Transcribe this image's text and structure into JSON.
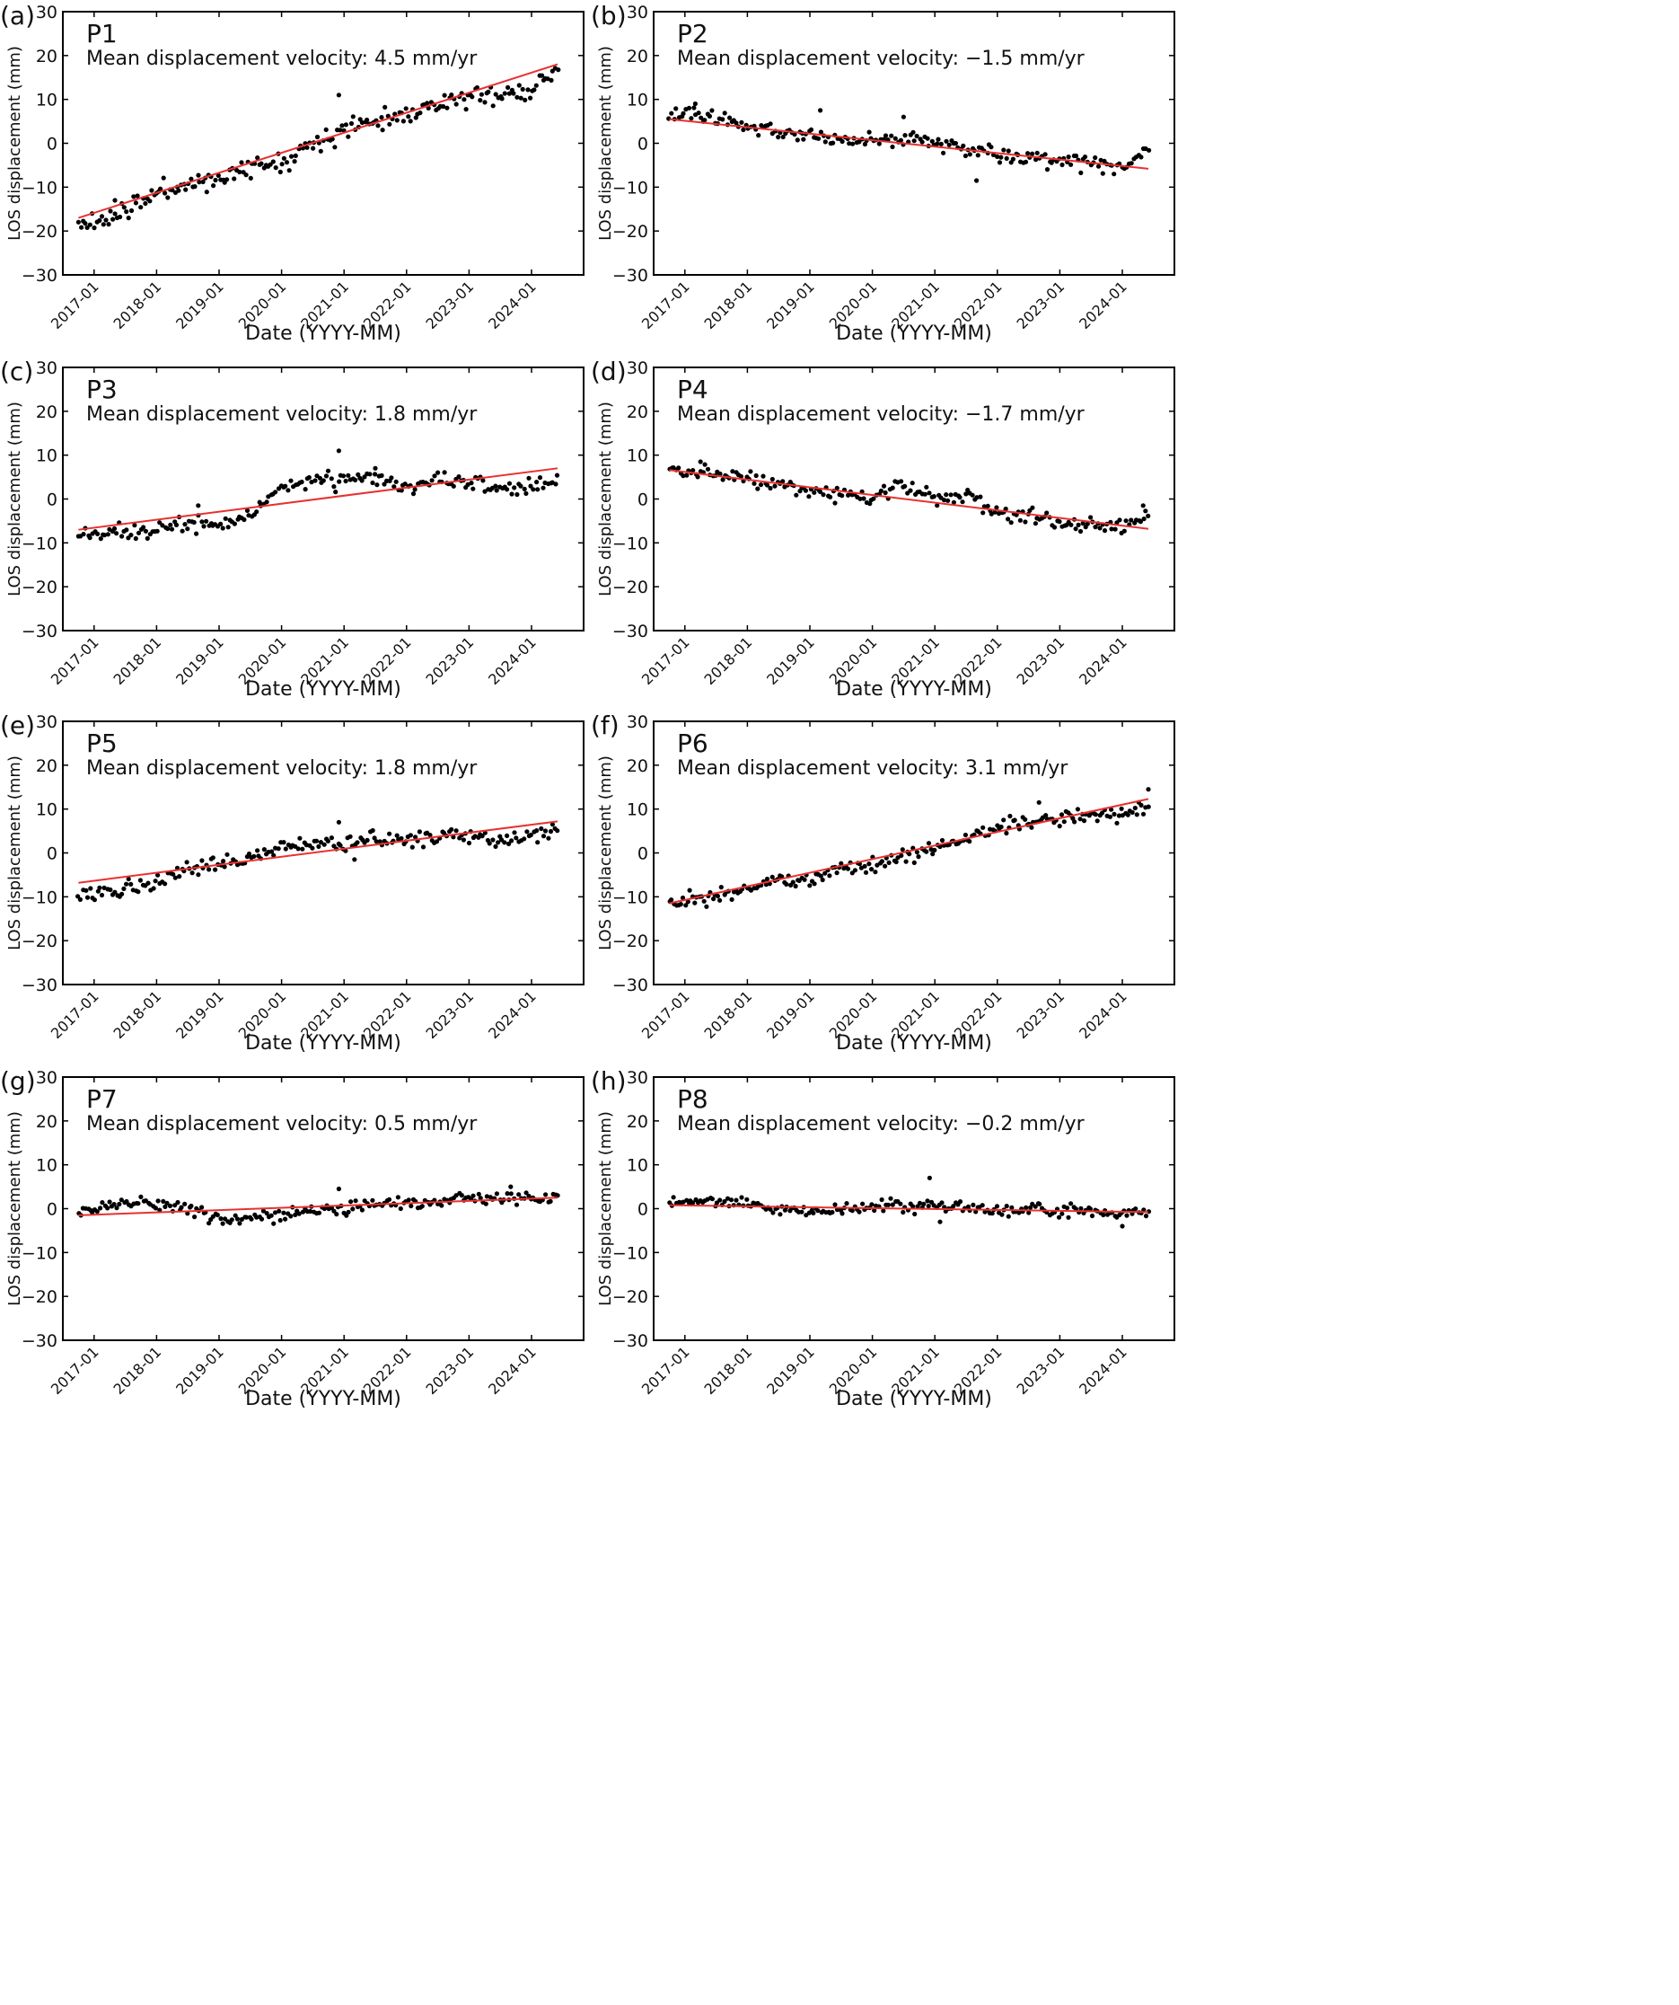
{
  "chart_data": [
    {
      "type": "scatter",
      "panel_label": "(a)",
      "point_label": "P1",
      "velocity_text": "Mean displacement velocity: 4.5 mm/yr",
      "xlabel": "Date (YYYY-MM)",
      "ylabel": "LOS displacement (mm)",
      "x_ticks": [
        "2017-01",
        "2018-01",
        "2019-01",
        "2020-01",
        "2021-01",
        "2022-01",
        "2023-01",
        "2024-01"
      ],
      "y_ticks": [
        30,
        20,
        10,
        0,
        -10,
        -20,
        -30
      ],
      "xlim": [
        "2016-07",
        "2024-11"
      ],
      "ylim": [
        -30,
        30
      ],
      "series": [
        {
          "kind": "points",
          "anchors": [
            [
              "2016-10",
              -18.5
            ],
            [
              "2017-01",
              -18
            ],
            [
              "2017-07",
              -15.5
            ],
            [
              "2018-01",
              -11
            ],
            [
              "2018-07",
              -9.5
            ],
            [
              "2019-01",
              -8
            ],
            [
              "2019-07",
              -5.5
            ],
            [
              "2020-01",
              -4
            ],
            [
              "2020-07",
              0
            ],
            [
              "2021-01",
              3
            ],
            [
              "2021-07",
              5.5
            ],
            [
              "2022-01",
              6.5
            ],
            [
              "2022-07",
              9
            ],
            [
              "2023-01",
              10.5
            ],
            [
              "2023-07",
              11
            ],
            [
              "2024-01",
              12.5
            ],
            [
              "2024-06",
              17
            ]
          ],
          "noise": 1.4,
          "count": 210,
          "seed": 11,
          "outliers": [
            [
              "2020-12",
              11
            ],
            [
              "2017-05",
              -13
            ]
          ]
        },
        {
          "kind": "trend",
          "from": [
            "2016-10",
            -17
          ],
          "to": [
            "2024-06",
            18
          ]
        }
      ]
    },
    {
      "type": "scatter",
      "panel_label": "(b)",
      "point_label": "P2",
      "velocity_text": "Mean displacement velocity: −1.5 mm/yr",
      "xlabel": "Date (YYYY-MM)",
      "ylabel": "LOS displacement (mm)",
      "x_ticks": [
        "2017-01",
        "2018-01",
        "2019-01",
        "2020-01",
        "2021-01",
        "2022-01",
        "2023-01",
        "2024-01"
      ],
      "y_ticks": [
        30,
        20,
        10,
        0,
        -10,
        -20,
        -30
      ],
      "xlim": [
        "2016-07",
        "2024-11"
      ],
      "ylim": [
        -30,
        30
      ],
      "series": [
        {
          "kind": "points",
          "anchors": [
            [
              "2016-10",
              6.5
            ],
            [
              "2017-04",
              6.5
            ],
            [
              "2018-01",
              4
            ],
            [
              "2018-07",
              3
            ],
            [
              "2019-01",
              2
            ],
            [
              "2019-07",
              1
            ],
            [
              "2020-01",
              0.5
            ],
            [
              "2020-07",
              1
            ],
            [
              "2021-01",
              0.5
            ],
            [
              "2021-07",
              -1
            ],
            [
              "2022-01",
              -2.5
            ],
            [
              "2022-07",
              -3.5
            ],
            [
              "2023-01",
              -4
            ],
            [
              "2023-07",
              -5
            ],
            [
              "2024-01",
              -5.5
            ],
            [
              "2024-06",
              -1
            ]
          ],
          "noise": 1.1,
          "count": 200,
          "seed": 23,
          "outliers": [
            [
              "2019-03",
              7.5
            ],
            [
              "2020-07",
              6
            ],
            [
              "2021-09",
              -8.5
            ],
            [
              "2017-03",
              9
            ]
          ]
        },
        {
          "kind": "trend",
          "from": [
            "2016-10",
            5.5
          ],
          "to": [
            "2024-06",
            -5.8
          ]
        }
      ]
    },
    {
      "type": "scatter",
      "panel_label": "(c)",
      "point_label": "P3",
      "velocity_text": "Mean displacement velocity: 1.8 mm/yr",
      "xlabel": "Date (YYYY-MM)",
      "ylabel": "LOS displacement (mm)",
      "x_ticks": [
        "2017-01",
        "2018-01",
        "2019-01",
        "2020-01",
        "2021-01",
        "2022-01",
        "2023-01",
        "2024-01"
      ],
      "y_ticks": [
        30,
        20,
        10,
        0,
        -10,
        -20,
        -30
      ],
      "xlim": [
        "2016-07",
        "2024-11"
      ],
      "ylim": [
        -30,
        30
      ],
      "series": [
        {
          "kind": "points",
          "anchors": [
            [
              "2016-10",
              -9
            ],
            [
              "2017-04",
              -7.5
            ],
            [
              "2018-01",
              -7
            ],
            [
              "2018-07",
              -6
            ],
            [
              "2019-01",
              -5.5
            ],
            [
              "2019-07",
              -3.5
            ],
            [
              "2020-01",
              2
            ],
            [
              "2020-07",
              4.5
            ],
            [
              "2021-01",
              4
            ],
            [
              "2021-07",
              4.5
            ],
            [
              "2022-01",
              2.5
            ],
            [
              "2022-07",
              4
            ],
            [
              "2023-01",
              4
            ],
            [
              "2023-07",
              2
            ],
            [
              "2024-01",
              3
            ],
            [
              "2024-06",
              4
            ]
          ],
          "noise": 1.2,
          "count": 200,
          "seed": 37,
          "outliers": [
            [
              "2020-12",
              11
            ],
            [
              "2018-09",
              -1.5
            ],
            [
              "2021-07",
              7
            ]
          ]
        },
        {
          "kind": "trend",
          "from": [
            "2016-10",
            -7
          ],
          "to": [
            "2024-06",
            7
          ]
        }
      ]
    },
    {
      "type": "scatter",
      "panel_label": "(d)",
      "point_label": "P4",
      "velocity_text": "Mean displacement velocity: −1.7 mm/yr",
      "xlabel": "Date (YYYY-MM)",
      "ylabel": "LOS displacement (mm)",
      "x_ticks": [
        "2017-01",
        "2018-01",
        "2019-01",
        "2020-01",
        "2021-01",
        "2022-01",
        "2023-01",
        "2024-01"
      ],
      "y_ticks": [
        30,
        20,
        10,
        0,
        -10,
        -20,
        -30
      ],
      "xlim": [
        "2016-07",
        "2024-11"
      ],
      "ylim": [
        -30,
        30
      ],
      "series": [
        {
          "kind": "points",
          "anchors": [
            [
              "2016-10",
              6.5
            ],
            [
              "2017-04",
              6.5
            ],
            [
              "2018-01",
              4.5
            ],
            [
              "2018-07",
              3.5
            ],
            [
              "2019-01",
              1.5
            ],
            [
              "2019-07",
              1.5
            ],
            [
              "2020-01",
              0
            ],
            [
              "2020-07",
              3
            ],
            [
              "2021-01",
              0
            ],
            [
              "2021-07",
              1
            ],
            [
              "2022-01",
              -3
            ],
            [
              "2022-07",
              -4
            ],
            [
              "2023-01",
              -5.5
            ],
            [
              "2023-07",
              -6.5
            ],
            [
              "2024-01",
              -6.5
            ],
            [
              "2024-06",
              -4
            ]
          ],
          "noise": 1.1,
          "count": 200,
          "seed": 41,
          "outliers": [
            [
              "2017-04",
              8.5
            ],
            [
              "2024-05",
              -1.5
            ]
          ]
        },
        {
          "kind": "trend",
          "from": [
            "2016-10",
            6.6
          ],
          "to": [
            "2024-06",
            -6.8
          ]
        }
      ]
    },
    {
      "type": "scatter",
      "panel_label": "(e)",
      "point_label": "P5",
      "velocity_text": "Mean displacement velocity: 1.8 mm/yr",
      "xlabel": "Date (YYYY-MM)",
      "ylabel": "LOS displacement (mm)",
      "x_ticks": [
        "2017-01",
        "2018-01",
        "2019-01",
        "2020-01",
        "2021-01",
        "2022-01",
        "2023-01",
        "2024-01"
      ],
      "y_ticks": [
        30,
        20,
        10,
        0,
        -10,
        -20,
        -30
      ],
      "xlim": [
        "2016-07",
        "2024-11"
      ],
      "ylim": [
        -30,
        30
      ],
      "series": [
        {
          "kind": "points",
          "anchors": [
            [
              "2016-10",
              -10.5
            ],
            [
              "2017-04",
              -9
            ],
            [
              "2018-01",
              -6.5
            ],
            [
              "2018-07",
              -3
            ],
            [
              "2019-01",
              -2
            ],
            [
              "2019-07",
              -1.5
            ],
            [
              "2020-01",
              1.5
            ],
            [
              "2020-07",
              2
            ],
            [
              "2021-01",
              2
            ],
            [
              "2021-07",
              3.5
            ],
            [
              "2022-01",
              3
            ],
            [
              "2022-07",
              3.5
            ],
            [
              "2023-01",
              4
            ],
            [
              "2023-07",
              3
            ],
            [
              "2024-01",
              4
            ],
            [
              "2024-06",
              5.5
            ]
          ],
          "noise": 1.1,
          "count": 200,
          "seed": 53,
          "outliers": [
            [
              "2020-12",
              7
            ],
            [
              "2021-03",
              -1.5
            ]
          ]
        },
        {
          "kind": "trend",
          "from": [
            "2016-10",
            -6.8
          ],
          "to": [
            "2024-06",
            7.2
          ]
        }
      ]
    },
    {
      "type": "scatter",
      "panel_label": "(f)",
      "point_label": "P6",
      "velocity_text": "Mean displacement velocity: 3.1 mm/yr",
      "xlabel": "Date (YYYY-MM)",
      "ylabel": "LOS displacement (mm)",
      "x_ticks": [
        "2017-01",
        "2018-01",
        "2019-01",
        "2020-01",
        "2021-01",
        "2022-01",
        "2023-01",
        "2024-01"
      ],
      "y_ticks": [
        30,
        20,
        10,
        0,
        -10,
        -20,
        -30
      ],
      "xlim": [
        "2016-07",
        "2024-11"
      ],
      "ylim": [
        -30,
        30
      ],
      "series": [
        {
          "kind": "points",
          "anchors": [
            [
              "2016-10",
              -11
            ],
            [
              "2017-04",
              -10.5
            ],
            [
              "2018-01",
              -8
            ],
            [
              "2018-07",
              -6
            ],
            [
              "2019-01",
              -6
            ],
            [
              "2019-07",
              -4
            ],
            [
              "2020-01",
              -3
            ],
            [
              "2020-07",
              -1
            ],
            [
              "2021-01",
              1.5
            ],
            [
              "2021-07",
              3.5
            ],
            [
              "2022-01",
              6
            ],
            [
              "2022-07",
              7.5
            ],
            [
              "2023-01",
              8
            ],
            [
              "2023-07",
              9.5
            ],
            [
              "2024-01",
              8.5
            ],
            [
              "2024-06",
              11
            ]
          ],
          "noise": 1.1,
          "count": 210,
          "seed": 67,
          "outliers": [
            [
              "2024-06",
              14.5
            ],
            [
              "2022-09",
              11.5
            ]
          ]
        },
        {
          "kind": "trend",
          "from": [
            "2016-10",
            -11.5
          ],
          "to": [
            "2024-06",
            12.3
          ]
        }
      ]
    },
    {
      "type": "scatter",
      "panel_label": "(g)",
      "point_label": "P7",
      "velocity_text": "Mean displacement velocity: 0.5 mm/yr",
      "xlabel": "Date (YYYY-MM)",
      "ylabel": "LOS displacement (mm)",
      "x_ticks": [
        "2017-01",
        "2018-01",
        "2019-01",
        "2020-01",
        "2021-01",
        "2022-01",
        "2023-01",
        "2024-01"
      ],
      "y_ticks": [
        30,
        20,
        10,
        0,
        -10,
        -20,
        -30
      ],
      "xlim": [
        "2016-07",
        "2024-11"
      ],
      "ylim": [
        -30,
        30
      ],
      "series": [
        {
          "kind": "points",
          "anchors": [
            [
              "2016-10",
              -1
            ],
            [
              "2017-04",
              1
            ],
            [
              "2018-01",
              1
            ],
            [
              "2018-07",
              0
            ],
            [
              "2019-01",
              -2.5
            ],
            [
              "2019-07",
              -2.5
            ],
            [
              "2020-01",
              -1.5
            ],
            [
              "2020-07",
              0
            ],
            [
              "2021-01",
              -0.5
            ],
            [
              "2021-07",
              1.5
            ],
            [
              "2022-01",
              1.5
            ],
            [
              "2022-07",
              1.5
            ],
            [
              "2023-01",
              2.5
            ],
            [
              "2023-07",
              2.5
            ],
            [
              "2024-01",
              2.5
            ],
            [
              "2024-06",
              2.5
            ]
          ],
          "noise": 0.9,
          "count": 200,
          "seed": 71,
          "outliers": [
            [
              "2020-12",
              4.5
            ],
            [
              "2023-09",
              5
            ]
          ]
        },
        {
          "kind": "trend",
          "from": [
            "2016-10",
            -1.5
          ],
          "to": [
            "2024-06",
            2.5
          ]
        }
      ]
    },
    {
      "type": "scatter",
      "panel_label": "(h)",
      "point_label": "P8",
      "velocity_text": "Mean displacement velocity: −0.2 mm/yr",
      "xlabel": "Date (YYYY-MM)",
      "ylabel": "LOS displacement (mm)",
      "x_ticks": [
        "2017-01",
        "2018-01",
        "2019-01",
        "2020-01",
        "2021-01",
        "2022-01",
        "2023-01",
        "2024-01"
      ],
      "y_ticks": [
        30,
        20,
        10,
        0,
        -10,
        -20,
        -30
      ],
      "xlim": [
        "2016-07",
        "2024-11"
      ],
      "ylim": [
        -30,
        30
      ],
      "series": [
        {
          "kind": "points",
          "anchors": [
            [
              "2016-10",
              1.5
            ],
            [
              "2017-04",
              1.5
            ],
            [
              "2018-01",
              1
            ],
            [
              "2018-07",
              0
            ],
            [
              "2019-01",
              -1
            ],
            [
              "2019-07",
              0
            ],
            [
              "2020-01",
              0.5
            ],
            [
              "2020-07",
              0.5
            ],
            [
              "2021-01",
              0.5
            ],
            [
              "2021-07",
              0
            ],
            [
              "2022-01",
              -0.5
            ],
            [
              "2022-07",
              0
            ],
            [
              "2023-01",
              -0.5
            ],
            [
              "2023-07",
              -0.5
            ],
            [
              "2024-01",
              -1
            ],
            [
              "2024-06",
              -0.5
            ]
          ],
          "noise": 0.9,
          "count": 200,
          "seed": 83,
          "outliers": [
            [
              "2020-12",
              7
            ],
            [
              "2021-02",
              -3
            ],
            [
              "2024-01",
              -4
            ]
          ]
        },
        {
          "kind": "trend",
          "from": [
            "2016-10",
            0.8
          ],
          "to": [
            "2024-06",
            -0.8
          ]
        }
      ]
    }
  ]
}
